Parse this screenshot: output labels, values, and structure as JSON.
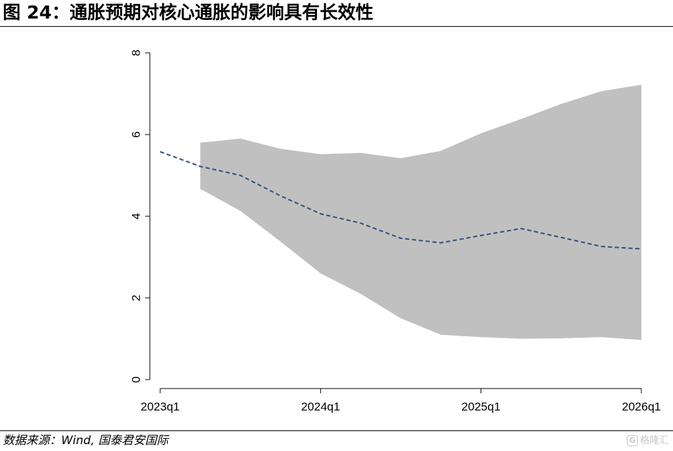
{
  "title": "图 24：通胀预期对核心通胀的影响具有长效性",
  "source": "数据来源：Wind, 国泰君安国际",
  "watermark": "格隆汇",
  "chart_data": {
    "type": "area",
    "title": "",
    "xlabel": "",
    "ylabel": "",
    "ylim": [
      0,
      8
    ],
    "yticks": [
      0,
      2,
      4,
      6,
      8
    ],
    "y_tick_labels": [
      "0",
      "2",
      "4",
      "6",
      "8"
    ],
    "x_tick_labels": [
      "2023q1",
      "2024q1",
      "2025q1",
      "2026q1"
    ],
    "x_tick_quarters": [
      "2023q1",
      "2024q1",
      "2025q1",
      "2026q1"
    ],
    "x_quarters": [
      "2023q1",
      "2023q2",
      "2023q3",
      "2023q4",
      "2024q1",
      "2024q2",
      "2024q3",
      "2024q4",
      "2025q1",
      "2025q2",
      "2025q3",
      "2025q4",
      "2026q1"
    ],
    "series": [
      {
        "kind": "line",
        "style": "dashed",
        "color": "#2e4d7b",
        "values": [
          5.58,
          5.22,
          5.0,
          4.5,
          4.06,
          3.83,
          3.46,
          3.35,
          3.53,
          3.7,
          3.48,
          3.26,
          3.2
        ]
      },
      {
        "kind": "band",
        "color": "#c0c0c0",
        "start_index": 1,
        "upper": [
          5.8,
          5.9,
          5.65,
          5.52,
          5.55,
          5.42,
          5.6,
          6.03,
          6.38,
          6.75,
          7.06,
          7.22
        ],
        "lower": [
          4.67,
          4.13,
          3.38,
          2.6,
          2.1,
          1.5,
          1.1,
          1.04,
          1.0,
          1.01,
          1.04,
          0.97
        ]
      }
    ],
    "grid": false,
    "legend": "none"
  }
}
